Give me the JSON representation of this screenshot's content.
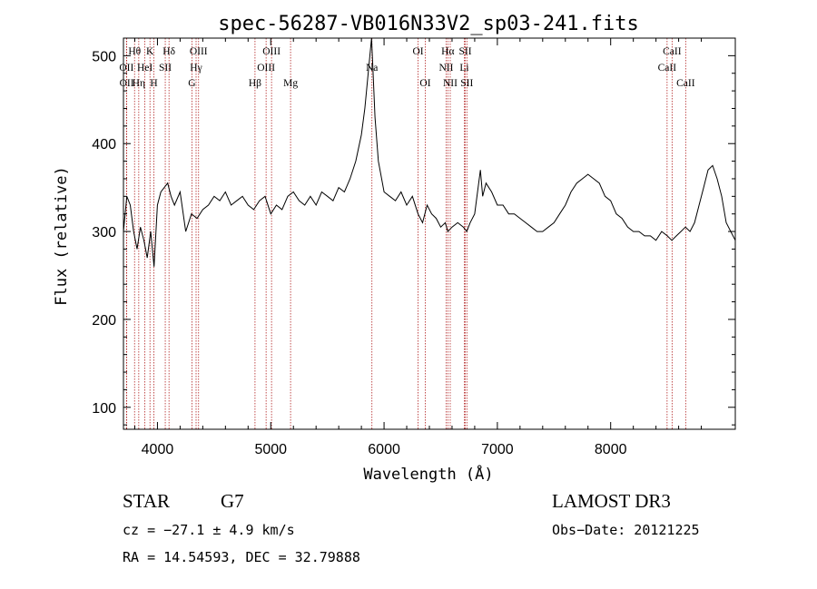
{
  "chart_data": {
    "type": "line",
    "title": "spec-56287-VB016N33V2_sp03-241.fits",
    "xlabel": "Wavelength (Å)",
    "ylabel": "Flux (relative)",
    "xlim": [
      3700,
      9100
    ],
    "ylim": [
      75,
      520
    ],
    "xticks": [
      4000,
      5000,
      6000,
      7000,
      8000
    ],
    "yticks": [
      100,
      200,
      300,
      400,
      500
    ],
    "spectrum": {
      "name": "flux",
      "x": [
        3700,
        3730,
        3760,
        3790,
        3820,
        3850,
        3880,
        3910,
        3940,
        3970,
        4000,
        4030,
        4060,
        4090,
        4120,
        4150,
        4200,
        4250,
        4300,
        4350,
        4400,
        4450,
        4500,
        4550,
        4600,
        4650,
        4700,
        4750,
        4800,
        4850,
        4900,
        4950,
        5000,
        5050,
        5100,
        5150,
        5200,
        5250,
        5300,
        5350,
        5400,
        5450,
        5500,
        5550,
        5600,
        5650,
        5700,
        5750,
        5800,
        5830,
        5860,
        5890,
        5900,
        5920,
        5950,
        6000,
        6050,
        6100,
        6150,
        6200,
        6250,
        6300,
        6340,
        6380,
        6420,
        6460,
        6500,
        6540,
        6563,
        6600,
        6650,
        6700,
        6730,
        6760,
        6800,
        6850,
        6870,
        6900,
        6950,
        7000,
        7050,
        7100,
        7150,
        7200,
        7250,
        7300,
        7350,
        7400,
        7450,
        7500,
        7550,
        7600,
        7650,
        7700,
        7750,
        7800,
        7850,
        7900,
        7950,
        8000,
        8050,
        8100,
        8150,
        8200,
        8250,
        8300,
        8350,
        8400,
        8450,
        8500,
        8540,
        8580,
        8620,
        8660,
        8700,
        8740,
        8780,
        8820,
        8860,
        8900,
        8940,
        8980,
        9020,
        9060,
        9100
      ],
      "values": [
        300,
        340,
        330,
        300,
        280,
        305,
        290,
        270,
        300,
        260,
        330,
        345,
        350,
        355,
        340,
        330,
        345,
        300,
        320,
        315,
        325,
        330,
        340,
        335,
        345,
        330,
        335,
        340,
        330,
        325,
        335,
        340,
        320,
        330,
        325,
        340,
        345,
        335,
        330,
        340,
        330,
        345,
        340,
        335,
        350,
        345,
        360,
        380,
        410,
        440,
        480,
        520,
        490,
        430,
        380,
        345,
        340,
        335,
        345,
        330,
        340,
        320,
        310,
        330,
        320,
        315,
        305,
        310,
        300,
        305,
        310,
        305,
        300,
        310,
        320,
        370,
        340,
        355,
        345,
        330,
        330,
        320,
        320,
        315,
        310,
        305,
        300,
        300,
        305,
        310,
        320,
        330,
        345,
        355,
        360,
        365,
        360,
        355,
        340,
        335,
        320,
        315,
        305,
        300,
        300,
        295,
        295,
        290,
        300,
        295,
        290,
        295,
        300,
        305,
        300,
        310,
        330,
        350,
        370,
        375,
        360,
        340,
        310,
        300,
        290
      ]
    },
    "lines": [
      {
        "label": "Hθ",
        "w": 3798,
        "row": 0
      },
      {
        "label": "K",
        "w": 3934,
        "row": 0
      },
      {
        "label": "Hδ",
        "w": 4102,
        "row": 0
      },
      {
        "label": "OIII",
        "w": 4363,
        "row": 0
      },
      {
        "label": "OIII",
        "w": 5007,
        "row": 0
      },
      {
        "label": "OI",
        "w": 6300,
        "row": 0
      },
      {
        "label": "Hα",
        "w": 6563,
        "row": 0
      },
      {
        "label": "SII",
        "w": 6717,
        "row": 0
      },
      {
        "label": "CaII",
        "w": 8542,
        "row": 0
      },
      {
        "label": "OII",
        "w": 3727,
        "row": 1
      },
      {
        "label": "HeI",
        "w": 3889,
        "row": 1
      },
      {
        "label": "SII",
        "w": 4069,
        "row": 1
      },
      {
        "label": "Hγ",
        "w": 4341,
        "row": 1
      },
      {
        "label": "OIII",
        "w": 4959,
        "row": 1
      },
      {
        "label": "NII",
        "w": 6548,
        "row": 1
      },
      {
        "label": "Li",
        "w": 6708,
        "row": 1
      },
      {
        "label": "CaII",
        "w": 8498,
        "row": 1
      },
      {
        "label": "OII",
        "w": 3729,
        "row": 2
      },
      {
        "label": "Hη",
        "w": 3835,
        "row": 2
      },
      {
        "label": "H",
        "w": 3969,
        "row": 2
      },
      {
        "label": "G",
        "w": 4304,
        "row": 2
      },
      {
        "label": "Hβ",
        "w": 4861,
        "row": 2
      },
      {
        "label": "Mg",
        "w": 5175,
        "row": 2
      },
      {
        "label": "Na",
        "w": 5893,
        "row": 1.5
      },
      {
        "label": "OI",
        "w": 6364,
        "row": 2
      },
      {
        "label": "NII",
        "w": 6584,
        "row": 2
      },
      {
        "label": "SII",
        "w": 6731,
        "row": 2
      },
      {
        "label": "CaII",
        "w": 8662,
        "row": 2
      }
    ]
  },
  "info": {
    "object_class": "STAR",
    "subclass": "G7",
    "survey": "LAMOST DR3",
    "cz": "cz = −27.1 ± 4.9 km/s",
    "obs_date": "Obs−Date: 20121225",
    "coords": "RA =  14.54593, DEC =  32.79888"
  },
  "colors": {
    "line_marker": "#b22222",
    "spectrum": "#000000"
  }
}
